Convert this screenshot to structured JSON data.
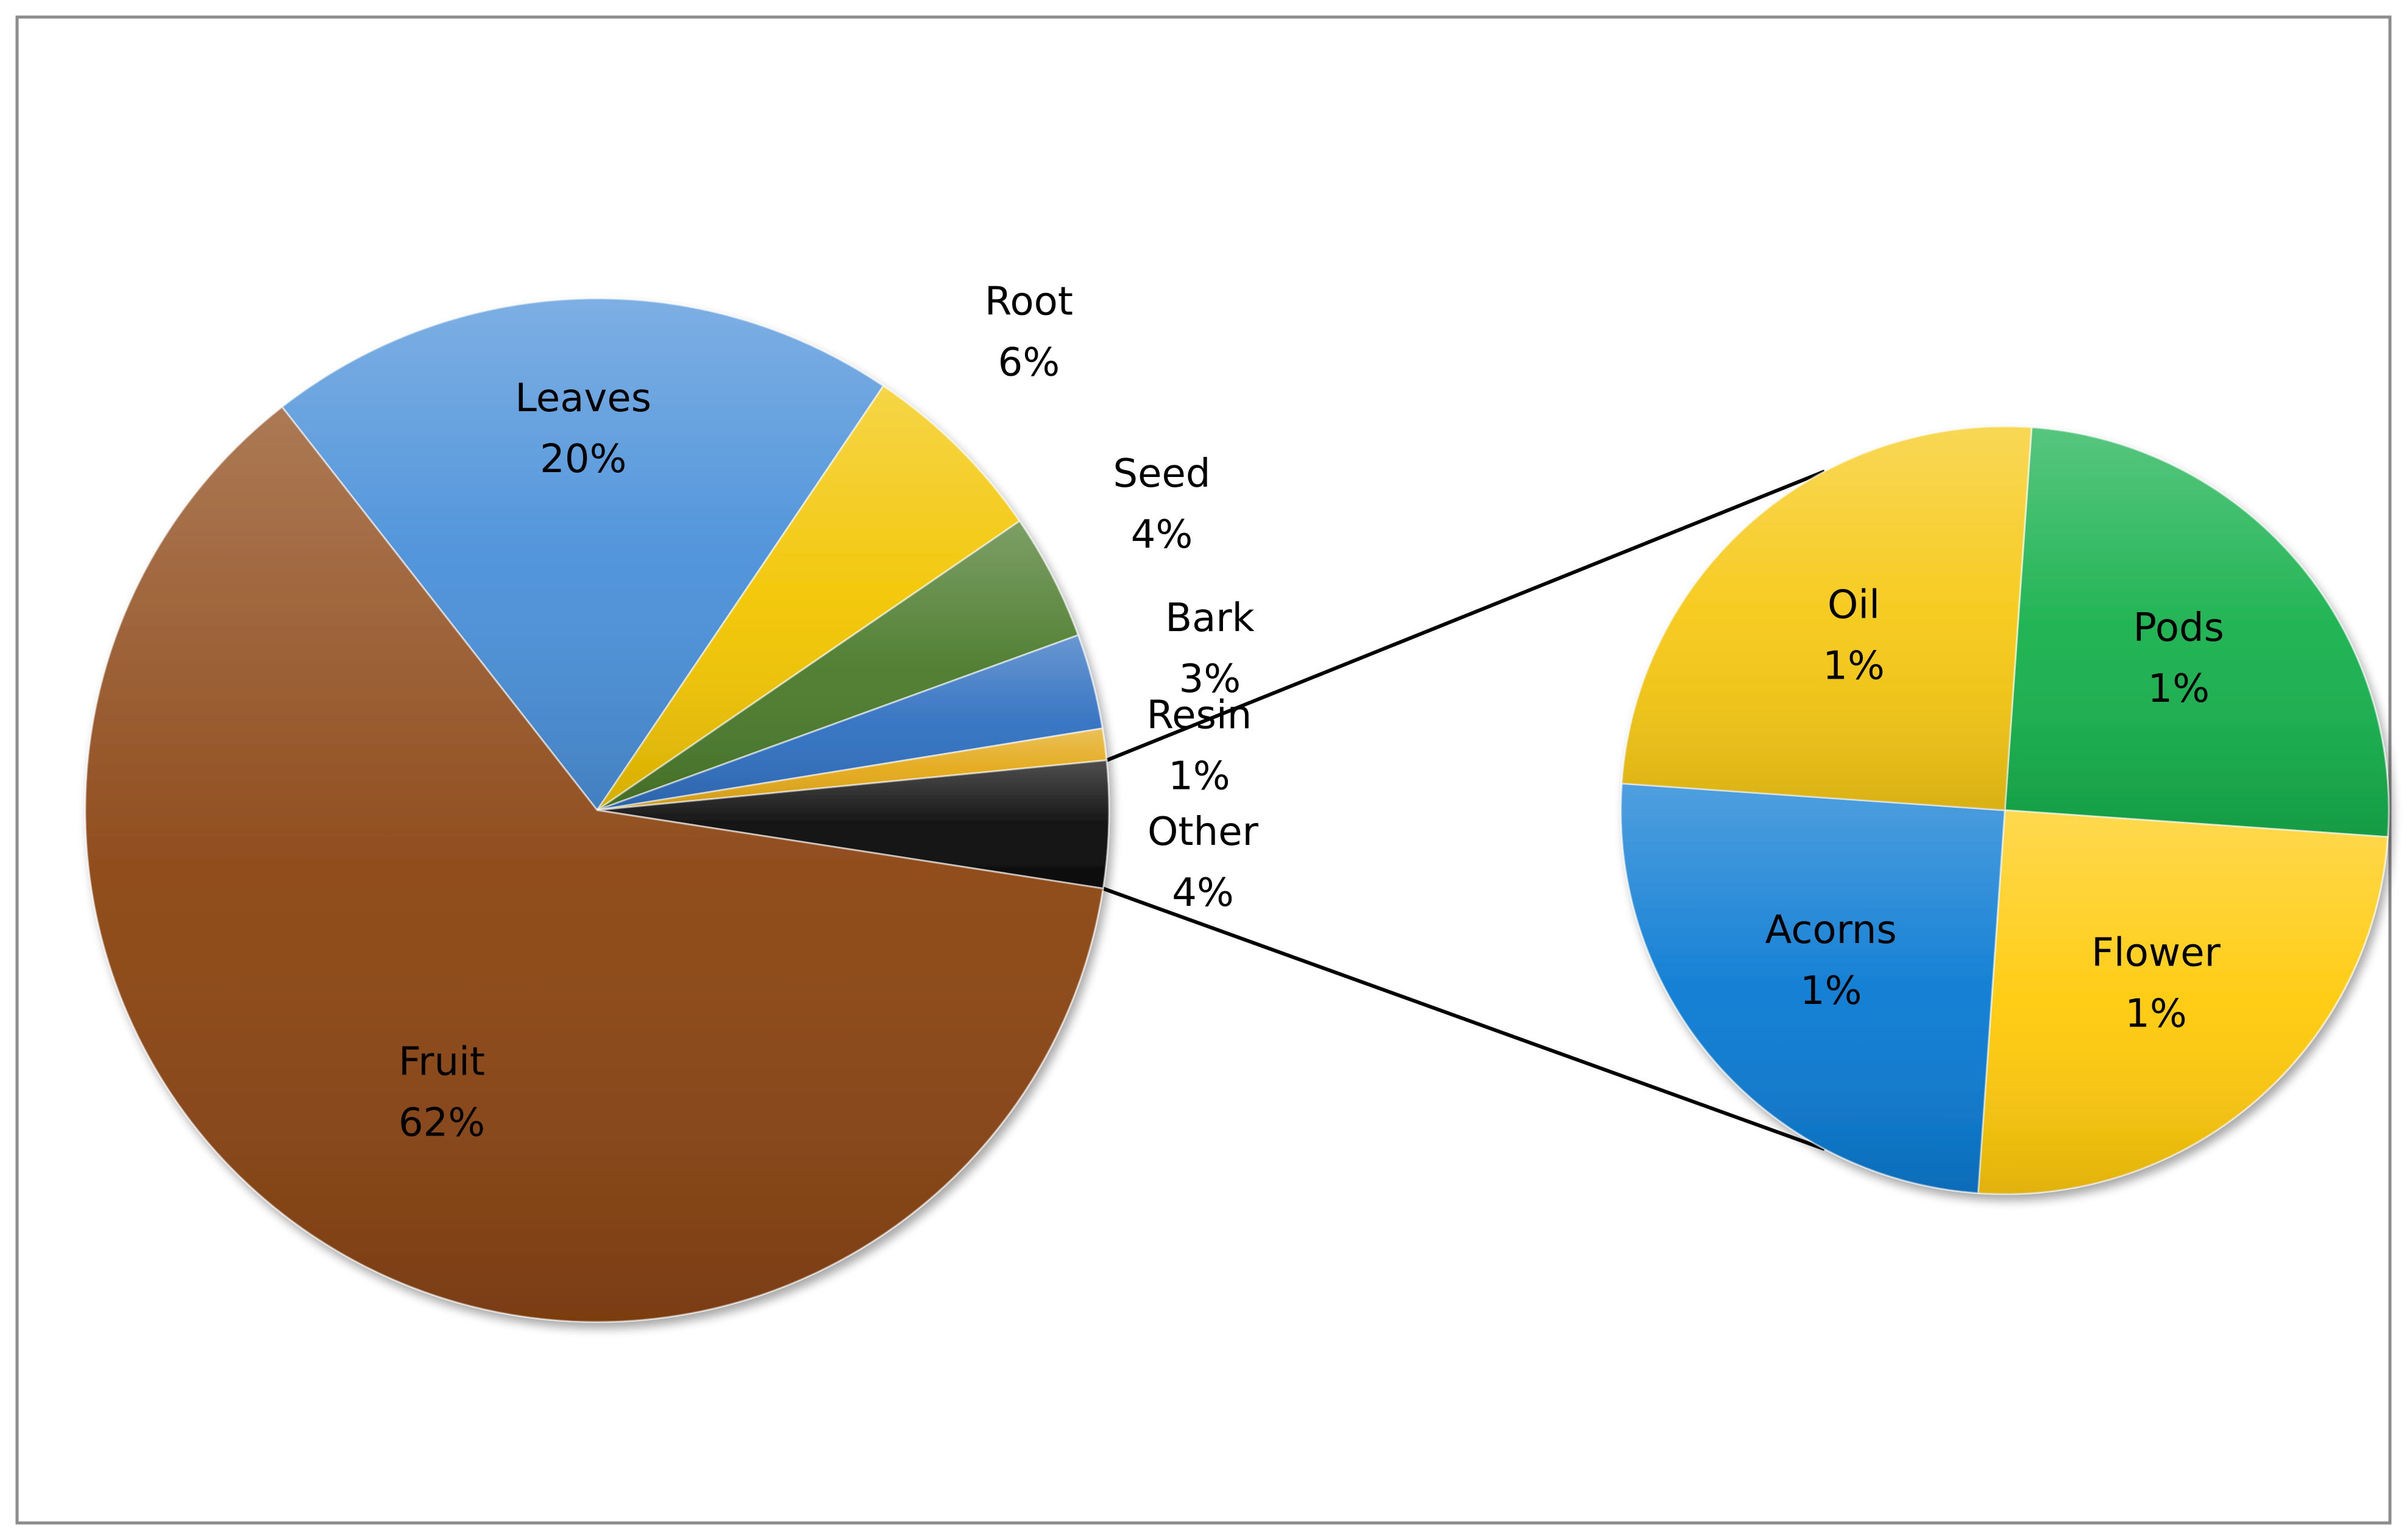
{
  "chart_data": {
    "type": "pie",
    "subtype": "pie-of-pie",
    "main_pie": {
      "slices": [
        {
          "label": "Leaves",
          "value": 20,
          "value_label": "20%",
          "color": "#4A90D9"
        },
        {
          "label": "Root",
          "value": 6,
          "value_label": "6%",
          "color": "#F2C500"
        },
        {
          "label": "Seed",
          "value": 4,
          "value_label": "4%",
          "color": "#4A7A2A"
        },
        {
          "label": "Bark",
          "value": 3,
          "value_label": "3%",
          "color": "#2F6FC0"
        },
        {
          "label": "Resin",
          "value": 1,
          "value_label": "1%",
          "color": "#E3A817"
        },
        {
          "label": "Other",
          "value": 4,
          "value_label": "4%",
          "color": "#0A0A0A"
        },
        {
          "label": "Fruit",
          "value": 62,
          "value_label": "62%",
          "color": "#8B4513"
        }
      ]
    },
    "secondary_pie": {
      "expands": "Other",
      "slices": [
        {
          "label": "Pods",
          "value": 1,
          "value_label": "1%",
          "color": "#16B04C"
        },
        {
          "label": "Flower",
          "value": 1,
          "value_label": "1%",
          "color": "#FFCA0A"
        },
        {
          "label": "Acorns",
          "value": 1,
          "value_label": "1%",
          "color": "#0A7AD2"
        },
        {
          "label": "Oil",
          "value": 1,
          "value_label": "1%",
          "color": "#F6C814"
        }
      ]
    },
    "legend": "none",
    "grid": false
  }
}
